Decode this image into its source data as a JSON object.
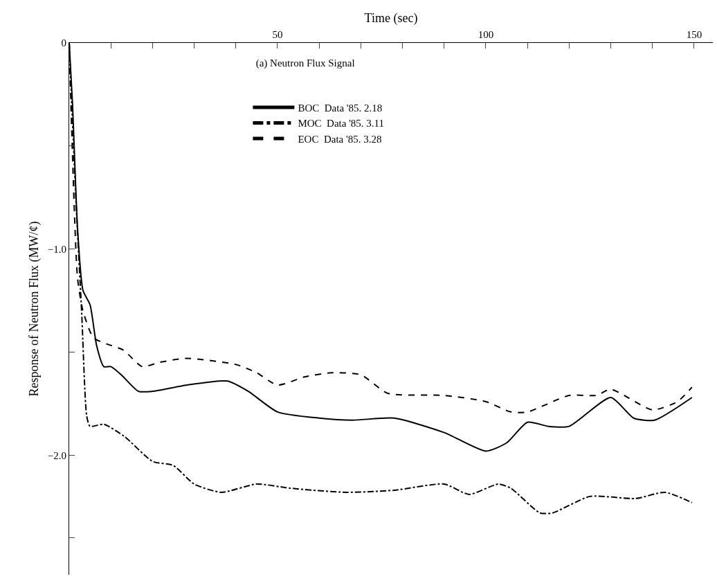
{
  "chart_data": {
    "type": "line",
    "title": "(a) Neutron Flux Signal",
    "xlabel": "Time (sec)",
    "ylabel": "Response of Neutron Flux (MW/¢)",
    "xlim": [
      0,
      154.5
    ],
    "xticks": [
      {
        "value": 0,
        "label": null
      },
      {
        "value": 10,
        "label": null
      },
      {
        "value": 20,
        "label": null
      },
      {
        "value": 30,
        "label": null
      },
      {
        "value": 40,
        "label": null
      },
      50,
      {
        "value": 60,
        "label": null
      },
      {
        "value": 70,
        "label": null
      },
      {
        "value": 80,
        "label": null
      },
      {
        "value": 90,
        "label": null
      },
      100,
      {
        "value": 110,
        "label": null
      },
      {
        "value": 120,
        "label": null
      },
      {
        "value": 130,
        "label": null
      },
      {
        "value": 140,
        "label": null
      },
      150
    ],
    "ylim": [
      -2.58,
      0
    ],
    "yticks": [
      0,
      {
        "value": -0.5,
        "label": null
      },
      {
        "value": -1.0,
        "label": "−1.0"
      },
      {
        "value": -1.5,
        "label": null
      },
      {
        "value": -2.0,
        "label": "−2.0"
      },
      {
        "value": -2.4,
        "label": null
      }
    ],
    "legend": "top",
    "marker": "none",
    "series": [
      {
        "name": "BOC  Data '85. 2.18",
        "color": "#000000",
        "line_style": "solid",
        "x": [
          0,
          0.8,
          2,
          3.3,
          5,
          6.6,
          8.3,
          10,
          12.5,
          16.6,
          20,
          28,
          38,
          43,
          50,
          60,
          68,
          78,
          90,
          100,
          105,
          110,
          115,
          120,
          130,
          135.5,
          140.5,
          149.5
        ],
        "values": [
          0,
          -0.3,
          -0.9,
          -1.2,
          -1.27,
          -1.47,
          -1.57,
          -1.57,
          -1.61,
          -1.69,
          -1.69,
          -1.66,
          -1.64,
          -1.69,
          -1.79,
          -1.82,
          -1.83,
          -1.82,
          -1.89,
          -1.98,
          -1.94,
          -1.84,
          -1.86,
          -1.86,
          -1.72,
          -1.82,
          -1.83,
          -1.72
        ]
      },
      {
        "name": "MOC  Data '85. 3.11",
        "color": "#000000",
        "line_style": "dashdot",
        "x": [
          0,
          1.7,
          3,
          4.2,
          5,
          8.3,
          13.3,
          20,
          25,
          30,
          36.5,
          45,
          53,
          66.5,
          78,
          90,
          96,
          103,
          106,
          113,
          116,
          125,
          136,
          143,
          149.5
        ],
        "values": [
          0,
          -0.8,
          -1.31,
          -1.81,
          -1.86,
          -1.85,
          -1.91,
          -2.03,
          -2.05,
          -2.14,
          -2.18,
          -2.14,
          -2.16,
          -2.18,
          -2.17,
          -2.14,
          -2.19,
          -2.14,
          -2.16,
          -2.28,
          -2.28,
          -2.2,
          -2.21,
          -2.18,
          -2.23
        ]
      },
      {
        "name": "EOC  Data '85. 3.28",
        "color": "#000000",
        "line_style": "dashed",
        "x": [
          0,
          2,
          3.3,
          5.8,
          9,
          13,
          17.5,
          21.6,
          28,
          40,
          45,
          50,
          56.5,
          63,
          70,
          76.5,
          90,
          100,
          106,
          110,
          120,
          126.5,
          130,
          140,
          146,
          149.5
        ],
        "values": [
          0,
          -1.14,
          -1.3,
          -1.43,
          -1.46,
          -1.49,
          -1.57,
          -1.55,
          -1.53,
          -1.56,
          -1.6,
          -1.66,
          -1.62,
          -1.6,
          -1.61,
          -1.7,
          -1.71,
          -1.74,
          -1.79,
          -1.79,
          -1.71,
          -1.71,
          -1.68,
          -1.78,
          -1.74,
          -1.67
        ]
      }
    ]
  }
}
